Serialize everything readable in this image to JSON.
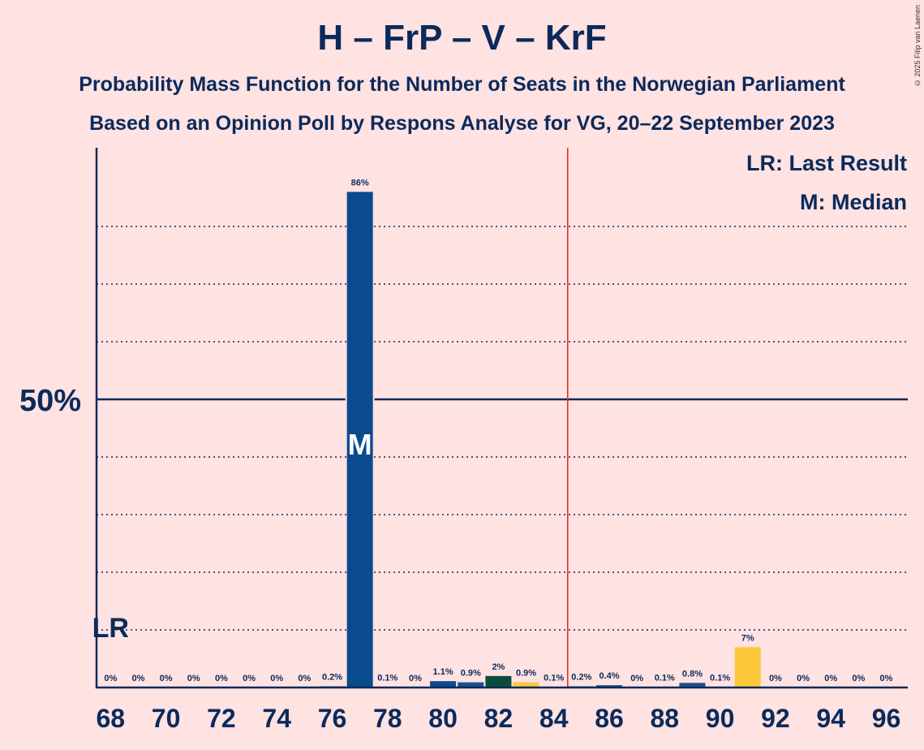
{
  "title": "H – FrP – V – KrF",
  "subtitle_1": "Probability Mass Function for the Number of Seats in the Norwegian Parliament",
  "subtitle_2": "Based on an Opinion Poll by Respons Analyse for VG, 20–22 September 2023",
  "copyright": "© 2025 Filip van Laenen",
  "legend": {
    "last_result": "LR: Last Result",
    "median": "M: Median"
  },
  "markers": {
    "last_result_label": "LR",
    "median_label": "M",
    "last_result_seat": 68,
    "median_seat": 77,
    "majority_seat": 85
  },
  "colors": {
    "background": "#ffe2e2",
    "text": "#0b2a5b",
    "majority_line": "#e52421",
    "bar_main": "#0a4a8f",
    "bar_dark_blue": "#1b4f8a",
    "bar_green": "#0b4d3c",
    "bar_yellow": "#fdc93a"
  },
  "chart_data": {
    "type": "bar",
    "title": "H – FrP – V – KrF",
    "ylabel_tick": "50%",
    "ylim": [
      0,
      93
    ],
    "gridlines": [
      10,
      20,
      30,
      40,
      50,
      60,
      70,
      80
    ],
    "xtick_labels": [
      "68",
      "70",
      "72",
      "74",
      "76",
      "78",
      "80",
      "82",
      "84",
      "86",
      "88",
      "90",
      "92",
      "94",
      "96"
    ],
    "x": [
      68,
      69,
      70,
      71,
      72,
      73,
      74,
      75,
      76,
      77,
      78,
      79,
      80,
      81,
      82,
      83,
      84,
      85,
      86,
      87,
      88,
      89,
      90,
      91,
      92,
      93,
      94,
      95,
      96
    ],
    "values": [
      0,
      0,
      0,
      0,
      0,
      0,
      0,
      0,
      0.2,
      86,
      0.1,
      0,
      1.1,
      0.9,
      2,
      0.9,
      0.1,
      0.2,
      0.4,
      0,
      0.1,
      0.8,
      0.1,
      7,
      0,
      0,
      0,
      0,
      0
    ],
    "labels": [
      "0%",
      "0%",
      "0%",
      "0%",
      "0%",
      "0%",
      "0%",
      "0%",
      "0.2%",
      "86%",
      "0.1%",
      "0%",
      "1.1%",
      "0.9%",
      "2%",
      "0.9%",
      "0.1%",
      "0.2%",
      "0.4%",
      "0%",
      "0.1%",
      "0.8%",
      "0.1%",
      "7%",
      "0%",
      "0%",
      "0%",
      "0%",
      "0%"
    ],
    "bar_colors": [
      "#0a4a8f",
      "#0a4a8f",
      "#0a4a8f",
      "#0a4a8f",
      "#0a4a8f",
      "#0a4a8f",
      "#0a4a8f",
      "#0a4a8f",
      "#0a4a8f",
      "#0a4a8f",
      "#0a4a8f",
      "#0a4a8f",
      "#0a4a8f",
      "#1b4f8a",
      "#0b4d3c",
      "#fdc93a",
      "#0a4a8f",
      "#0a4a8f",
      "#1b4f8a",
      "#0a4a8f",
      "#0a4a8f",
      "#1b4f8a",
      "#0a4a8f",
      "#fdc93a",
      "#0a4a8f",
      "#0a4a8f",
      "#0a4a8f",
      "#0a4a8f",
      "#0a4a8f"
    ]
  }
}
